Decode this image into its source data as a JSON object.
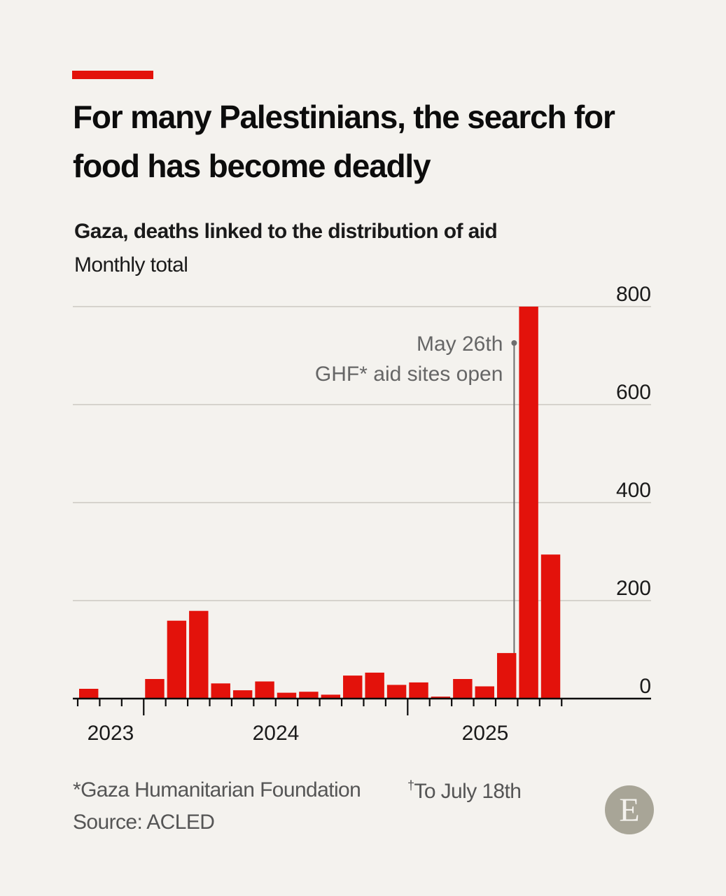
{
  "header": {
    "title": "For many Palestinians, the search for food has become deadly",
    "accent_color": "#e3120b"
  },
  "chart_data": {
    "type": "bar",
    "title": "Gaza, deaths linked to the distribution of aid",
    "subtitle": "Monthly total",
    "xlabel": "",
    "ylabel": "",
    "ylim": [
      0,
      800
    ],
    "yticks": [
      0,
      200,
      400,
      600,
      800
    ],
    "ytick_labels": [
      "0",
      "200",
      "400",
      "600",
      "800"
    ],
    "grid": true,
    "y_axis_side": "right",
    "bar_color": "#e3120b",
    "categories": [
      "Oct 2023",
      "Nov 2023",
      "Dec 2023",
      "Jan 2024",
      "Feb 2024",
      "Mar 2024",
      "Apr 2024",
      "May 2024",
      "Jun 2024",
      "Jul 2024",
      "Aug 2024",
      "Sep 2024",
      "Oct 2024",
      "Nov 2024",
      "Dec 2024",
      "Jan 2025",
      "Feb 2025",
      "Mar 2025",
      "Apr 2025",
      "May 2025",
      "Jun 2025",
      "Jul 2025"
    ],
    "values": [
      20,
      0,
      0,
      40,
      159,
      179,
      31,
      17,
      35,
      12,
      14,
      8,
      47,
      53,
      28,
      33,
      4,
      40,
      25,
      93,
      800,
      294
    ],
    "year_labels": [
      {
        "label": "2023",
        "month_index": 0
      },
      {
        "label": "2024",
        "month_index": 6
      },
      {
        "label": "2025",
        "month_index": 18
      }
    ],
    "annotations": [
      {
        "text_line1": "May 26th",
        "text_line2": "GHF* aid sites open",
        "at_category": "May 2025"
      },
      {
        "text": "†",
        "at_category": "Jul 2025",
        "note": "To July 18th"
      }
    ]
  },
  "footer": {
    "note1": "*Gaza Humanitarian Foundation",
    "note2_mark": "†",
    "note2": "To July 18th",
    "source": "Source: ACLED",
    "logo_letter": "E"
  }
}
